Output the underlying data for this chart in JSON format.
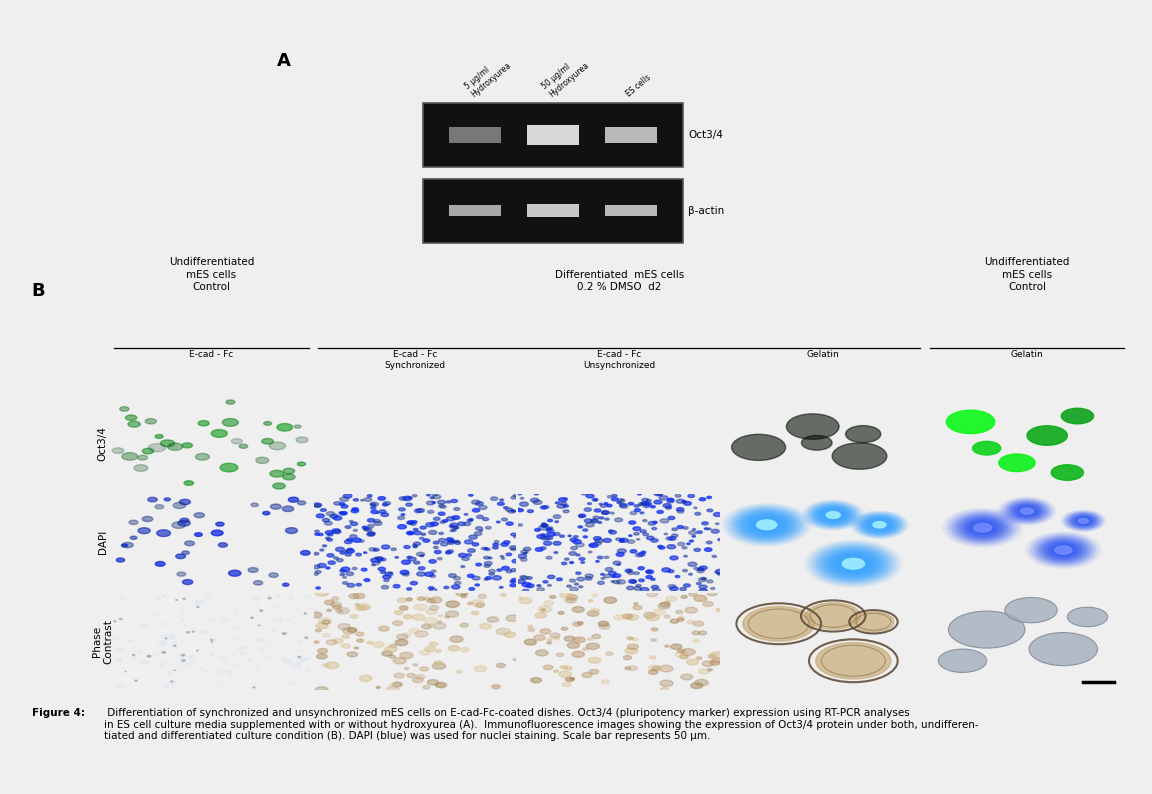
{
  "figure_title": "Figure 4:",
  "figure_caption": " Differentiation of synchronized and unsynchronized mES cells on E-cad-Fc-coated dishes. Oct3/4 (pluripotency marker) expression using RT-PCR analyses\nin ES cell culture media supplemented with or without hydroxyurea (A).  Immunofluorescence images showing the expression of Oct3/4 protein under both, undifferen-\ntiated and differentiated culture condition (B). DAPI (blue) was used for nuclei staining. Scale bar represents 50 μm.",
  "panel_A_label": "A",
  "panel_B_label": "B",
  "gel_labels_top": [
    "5 μg/ml\nHydroxyurea",
    "50 μg/ml\nHydroxyurea",
    "ES cells"
  ],
  "gel_row_labels": [
    "Oct3/4",
    "β-actin"
  ],
  "col_headers_group1": "Undifferentiated\nmES cells\nControl",
  "col_headers_group2": "Differentiated  mES cells\n0.2 % DMSO  d2",
  "col_headers_group3": "Undifferentiated\nmES cells\nControl",
  "col_sub_headers": [
    "E-cad - Fc",
    "E-cad - Fc\nSynchronized",
    "E-cad - Fc\nUnsynchronized",
    "Gelatin",
    "Gelatin"
  ],
  "row_labels": [
    "Oct3/4",
    "DAPI",
    "Phase\nContrast"
  ],
  "bg_color": "#efefef",
  "white_panel": "#ffffff",
  "caption_bold": "Figure 4:",
  "gel_dark": "#111111",
  "oct34_col0_bg": "#050e04",
  "oct34_col1_bg": "#040404",
  "oct34_col2_bg": "#040404",
  "oct34_col3_bg": "#060806",
  "oct34_col4_bg": "#040d04",
  "dapi_col0_bg": "#030310",
  "dapi_col1_bg": "#040a20",
  "dapi_col2_bg": "#040a20",
  "dapi_col3_bg": "#030310",
  "dapi_col4_bg": "#030310",
  "phase_col0_bg": "#c2cdd6",
  "phase_col1_bg": "#c5a87a",
  "phase_col2_bg": "#c3a87c",
  "phase_col3_bg": "#c2a87a",
  "phase_col4_bg": "#bcc6d2"
}
